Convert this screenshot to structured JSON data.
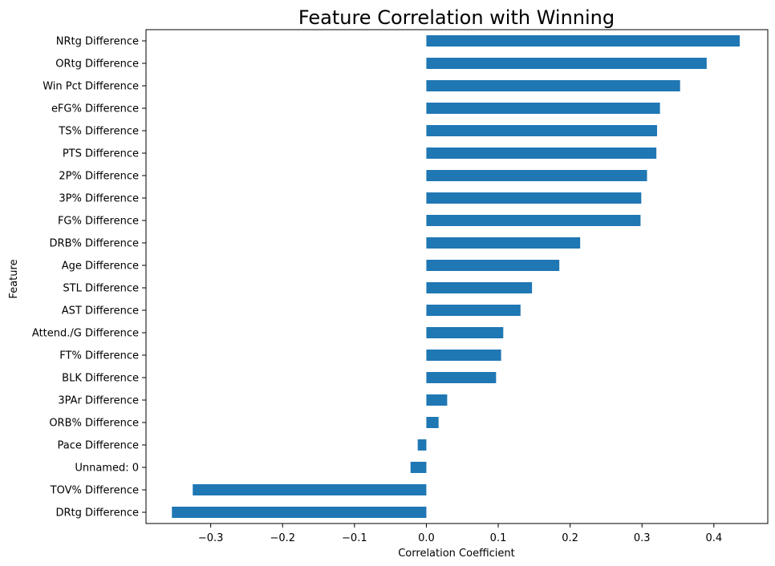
{
  "chart_data": {
    "type": "bar",
    "orientation": "horizontal",
    "title": "Feature Correlation with Winning",
    "xlabel": "Correlation Coefficient",
    "ylabel": "Feature",
    "xlim": [
      -0.39,
      0.475
    ],
    "xticks": [
      -0.3,
      -0.2,
      -0.1,
      0.0,
      0.1,
      0.2,
      0.3,
      0.4
    ],
    "xtick_labels": [
      "−0.3",
      "−0.2",
      "−0.1",
      "0.0",
      "0.1",
      "0.2",
      "0.3",
      "0.4"
    ],
    "grid": false,
    "bar_color": "#1f77b4",
    "categories": [
      "NRtg Difference",
      "ORtg Difference",
      "Win Pct Difference",
      "eFG% Difference",
      "TS% Difference",
      "PTS Difference",
      "2P% Difference",
      "3P% Difference",
      "FG% Difference",
      "DRB% Difference",
      "Age Difference",
      "STL Difference",
      "AST Difference",
      "Attend./G Difference",
      "FT% Difference",
      "BLK Difference",
      "3PAr Difference",
      "ORB% Difference",
      "Pace Difference",
      "Unnamed: 0",
      "TOV% Difference",
      "DRtg Difference"
    ],
    "values": [
      0.436,
      0.39,
      0.353,
      0.325,
      0.321,
      0.32,
      0.307,
      0.299,
      0.298,
      0.214,
      0.185,
      0.147,
      0.131,
      0.107,
      0.104,
      0.097,
      0.029,
      0.017,
      -0.012,
      -0.022,
      -0.325,
      -0.354
    ]
  }
}
